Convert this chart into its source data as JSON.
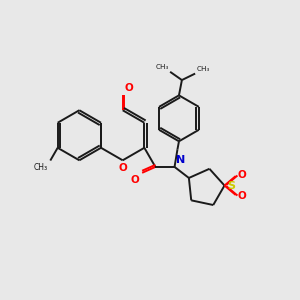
{
  "bg_color": "#e8e8e8",
  "bond_color": "#1a1a1a",
  "oxygen_color": "#ff0000",
  "nitrogen_color": "#0000cc",
  "sulfur_color": "#cccc00",
  "lw": 1.4,
  "figsize": [
    3.0,
    3.0
  ],
  "dpi": 100,
  "xlim": [
    0,
    10
  ],
  "ylim": [
    0,
    10
  ]
}
